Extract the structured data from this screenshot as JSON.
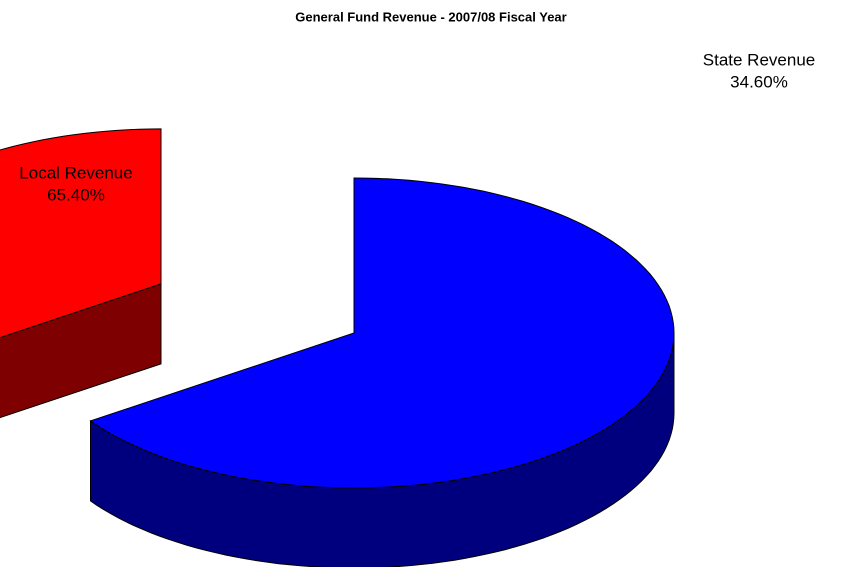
{
  "chart_data": {
    "type": "pie",
    "title": "General Fund Revenue - 2007/08 Fiscal Year",
    "categories": [
      "Local Revenue",
      "State Revenue"
    ],
    "values": [
      65.4,
      34.6
    ],
    "value_labels": [
      "65.40%",
      "34.60%"
    ],
    "colors": [
      "#0000ff",
      "#ff0000"
    ]
  }
}
